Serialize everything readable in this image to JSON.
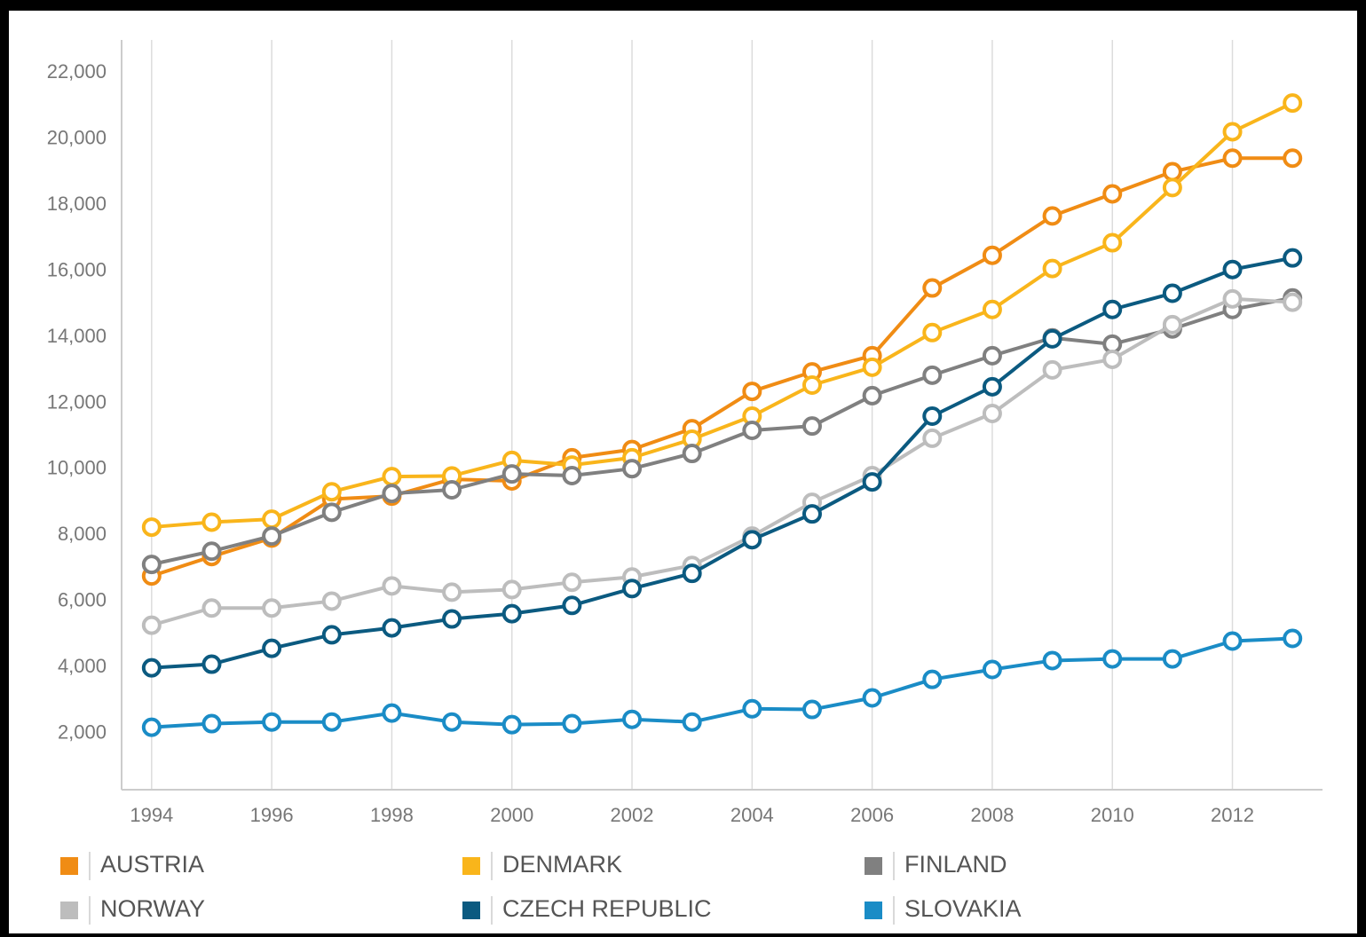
{
  "chart_data": {
    "type": "line",
    "x": [
      1994,
      1995,
      1996,
      1997,
      1998,
      1999,
      2000,
      2001,
      2002,
      2003,
      2004,
      2005,
      2006,
      2007,
      2008,
      2009,
      2010,
      2011,
      2012,
      2013
    ],
    "xlim": [
      1993.5,
      2013.5
    ],
    "xticks": [
      1994,
      1996,
      1998,
      2000,
      2002,
      2004,
      2006,
      2008,
      2010,
      2012
    ],
    "ylim": [
      300,
      23000
    ],
    "yticks": [
      {
        "value": 2000,
        "label": "2,000"
      },
      {
        "value": 4000,
        "label": "4,000"
      },
      {
        "value": 6000,
        "label": "6,000"
      },
      {
        "value": 8000,
        "label": "8,000"
      },
      {
        "value": 10000,
        "label": "10,000"
      },
      {
        "value": 12000,
        "label": "12,000"
      },
      {
        "value": 14000,
        "label": "14,000"
      },
      {
        "value": 16000,
        "label": "16,000"
      },
      {
        "value": 18000,
        "label": "18,000"
      },
      {
        "value": 20000,
        "label": "20,000"
      },
      {
        "value": 22000,
        "label": "22,000"
      }
    ],
    "grid": true,
    "series": [
      {
        "name": "AUSTRIA",
        "color": "#f08c14",
        "values": [
          6770,
          7360,
          7920,
          9100,
          9190,
          9700,
          9650,
          10350,
          10600,
          11230,
          12360,
          12950,
          13440,
          15490,
          16480,
          17670,
          18340,
          19010,
          19420,
          19420
        ]
      },
      {
        "name": "DENMARK",
        "color": "#f9b51b",
        "values": [
          8250,
          8400,
          8490,
          9320,
          9780,
          9800,
          10270,
          10130,
          10350,
          10910,
          11610,
          12550,
          13090,
          14140,
          14840,
          16080,
          16860,
          18530,
          20220,
          21090
        ]
      },
      {
        "name": "FINLAND",
        "color": "#808080",
        "values": [
          7120,
          7520,
          7980,
          8700,
          9270,
          9380,
          9860,
          9810,
          10020,
          10480,
          11180,
          11310,
          12230,
          12850,
          13440,
          13980,
          13790,
          14250,
          14840,
          15190
        ]
      },
      {
        "name": "NORWAY",
        "color": "#bdbdbd",
        "values": [
          5280,
          5800,
          5800,
          6010,
          6470,
          6280,
          6360,
          6580,
          6740,
          7090,
          7980,
          9000,
          9810,
          10940,
          11690,
          13010,
          13330,
          14380,
          15160,
          15060
        ]
      },
      {
        "name": "CZECH REPUBLIC",
        "color": "#0b5a80",
        "values": [
          3990,
          4100,
          4580,
          4990,
          5200,
          5470,
          5630,
          5880,
          6390,
          6850,
          7870,
          8650,
          9620,
          11610,
          12500,
          13950,
          14840,
          15330,
          16050,
          16400
        ]
      },
      {
        "name": "SLOVAKIA",
        "color": "#1a8cc6",
        "values": [
          2190,
          2300,
          2350,
          2350,
          2620,
          2350,
          2270,
          2300,
          2430,
          2350,
          2750,
          2730,
          3080,
          3640,
          3940,
          4210,
          4260,
          4260,
          4800,
          4880
        ]
      }
    ]
  }
}
